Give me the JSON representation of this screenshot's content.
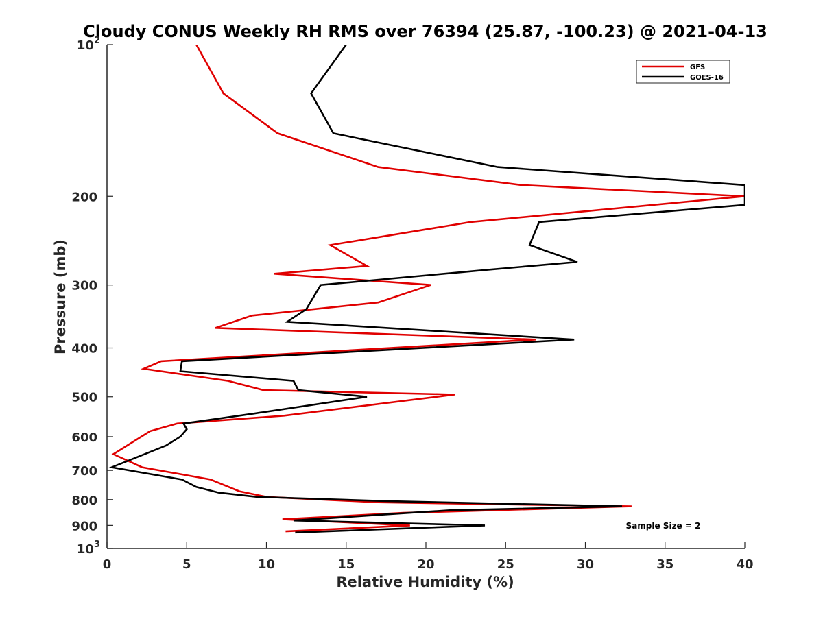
{
  "chart_data": {
    "type": "line",
    "title": "Cloudy CONUS Weekly RH RMS over 76394 (25.87, -100.23) @ 2021-04-13",
    "xlabel": "Relative Humidity (%)",
    "ylabel": "Pressure (mb)",
    "xlim": [
      0,
      40
    ],
    "ylim": [
      100,
      1000
    ],
    "y_scale": "log",
    "y_reversed": true,
    "grid": false,
    "legend_position": "top-right",
    "x_ticks": [
      "0",
      "5",
      "10",
      "15",
      "20",
      "25",
      "30",
      "35",
      "40"
    ],
    "y_ticks": [
      {
        "value": 100,
        "label": "10",
        "sup": "2"
      },
      {
        "value": 200,
        "label": "200"
      },
      {
        "value": 300,
        "label": "300"
      },
      {
        "value": 400,
        "label": "400"
      },
      {
        "value": 500,
        "label": "500"
      },
      {
        "value": 600,
        "label": "600"
      },
      {
        "value": 700,
        "label": "700"
      },
      {
        "value": 800,
        "label": "800"
      },
      {
        "value": 900,
        "label": "900"
      },
      {
        "value": 1000,
        "label": "10",
        "sup": "3"
      }
    ],
    "annotation": "Sample Size = 2",
    "series": [
      {
        "name": "GFS",
        "color": "#e00000",
        "points": [
          [
            5.6,
            100
          ],
          [
            7.3,
            125
          ],
          [
            10.7,
            150
          ],
          [
            17,
            175
          ],
          [
            26,
            190
          ],
          [
            40,
            200
          ],
          [
            22.8,
            225
          ],
          [
            14,
            250
          ],
          [
            16.3,
            275
          ],
          [
            10.5,
            285
          ],
          [
            20.3,
            300
          ],
          [
            17,
            325
          ],
          [
            9.1,
            345
          ],
          [
            6.8,
            365
          ],
          [
            26.9,
            385
          ],
          [
            3.4,
            425
          ],
          [
            2.3,
            440
          ],
          [
            7.6,
            465
          ],
          [
            9.8,
            485
          ],
          [
            21.8,
            495
          ],
          [
            11.1,
            545
          ],
          [
            4.4,
            565
          ],
          [
            2.7,
            585
          ],
          [
            0.4,
            650
          ],
          [
            2.2,
            690
          ],
          [
            6.5,
            730
          ],
          [
            8.3,
            770
          ],
          [
            10,
            790
          ],
          [
            17,
            810
          ],
          [
            32.9,
            825
          ],
          [
            18.6,
            850
          ],
          [
            11,
            875
          ],
          [
            19,
            900
          ],
          [
            11.2,
            925
          ]
        ]
      },
      {
        "name": "GOES-16",
        "color": "#000000",
        "points": [
          [
            15,
            100
          ],
          [
            12.8,
            125
          ],
          [
            14.2,
            150
          ],
          [
            24.5,
            175
          ],
          [
            40,
            190
          ],
          [
            40,
            208
          ],
          [
            27.1,
            225
          ],
          [
            26.5,
            250
          ],
          [
            29.5,
            270
          ],
          [
            23.8,
            280
          ],
          [
            13.4,
            300
          ],
          [
            12.5,
            335
          ],
          [
            11.3,
            355
          ],
          [
            29.3,
            385
          ],
          [
            4.7,
            425
          ],
          [
            4.6,
            445
          ],
          [
            11.7,
            465
          ],
          [
            12,
            485
          ],
          [
            16.3,
            500
          ],
          [
            9.2,
            540
          ],
          [
            4.8,
            565
          ],
          [
            5,
            580
          ],
          [
            4.6,
            600
          ],
          [
            3.7,
            625
          ],
          [
            0.3,
            690
          ],
          [
            4.7,
            730
          ],
          [
            5.6,
            755
          ],
          [
            7,
            775
          ],
          [
            9.4,
            790
          ],
          [
            17.3,
            805
          ],
          [
            32.3,
            825
          ],
          [
            21.5,
            840
          ],
          [
            11.7,
            880
          ],
          [
            23.7,
            900
          ],
          [
            11.8,
            930
          ]
        ]
      }
    ]
  }
}
